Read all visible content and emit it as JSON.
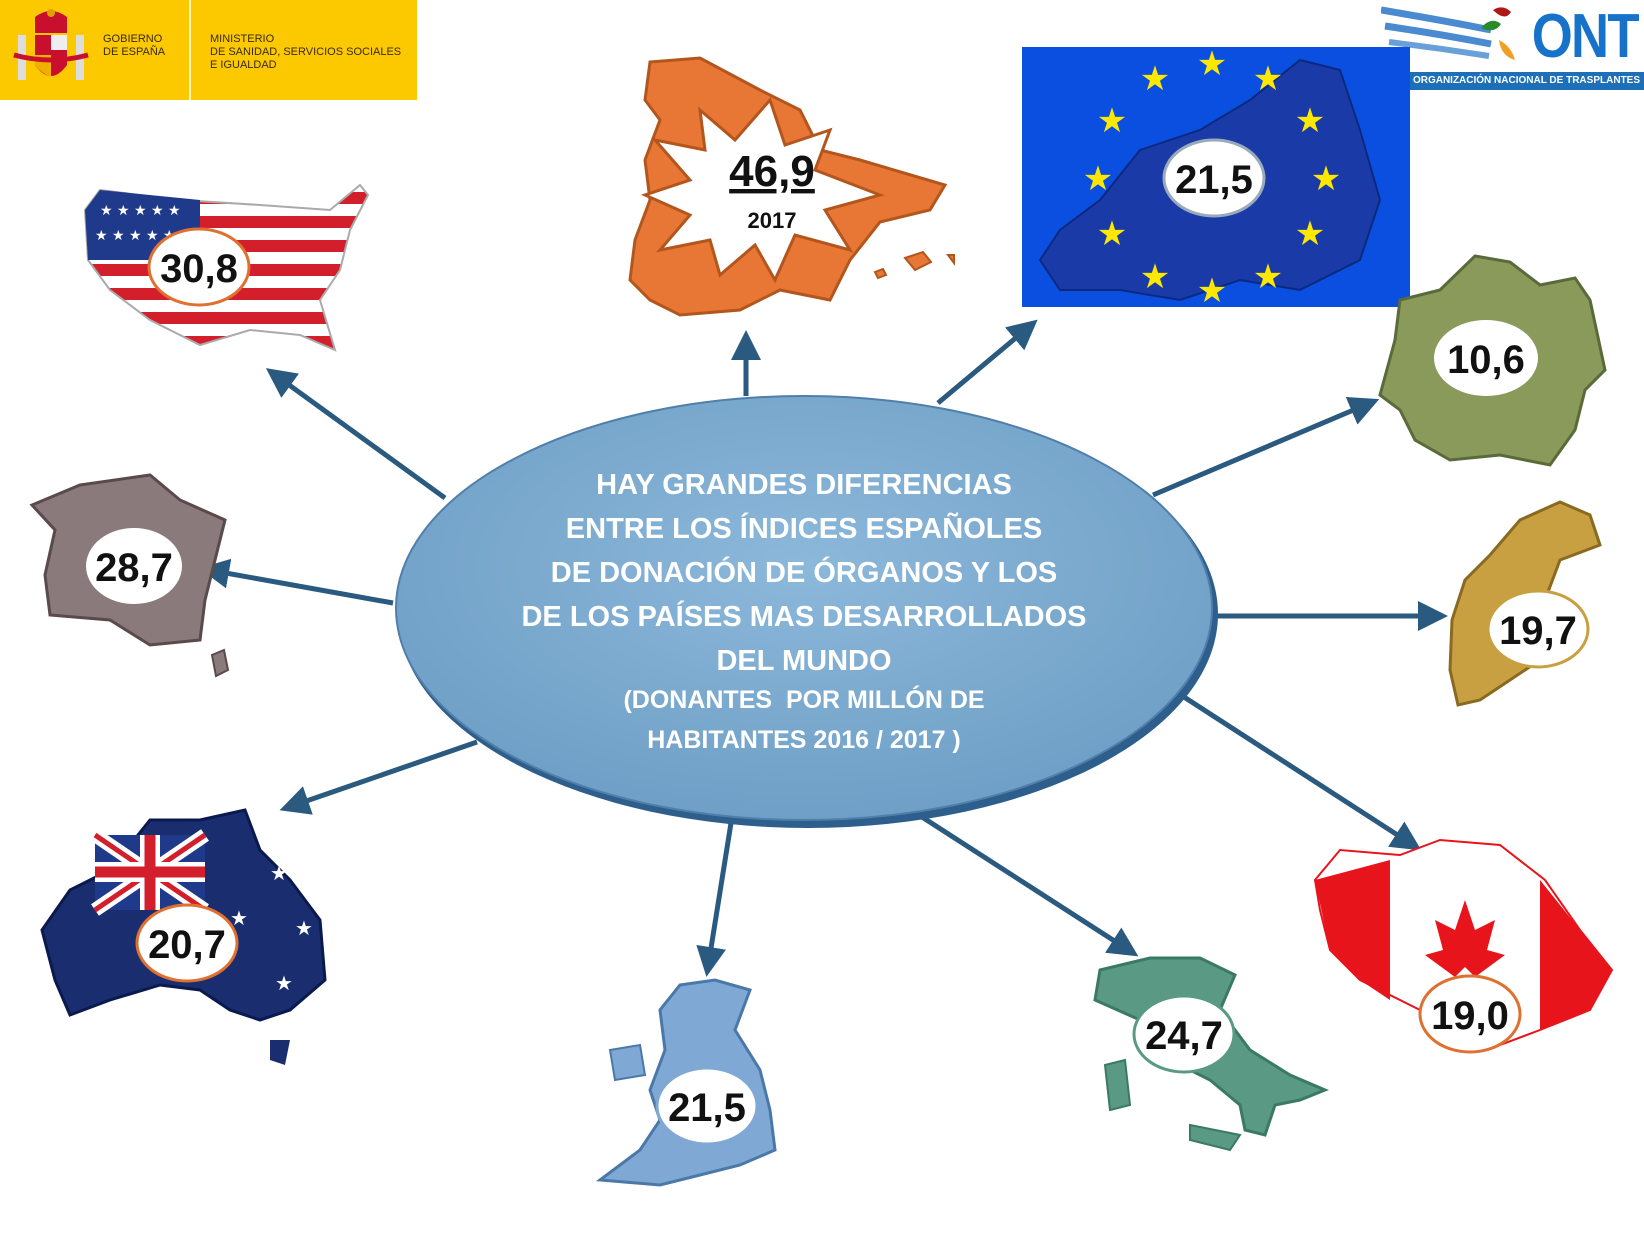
{
  "logos": {
    "gobierno": [
      "GOBIERNO",
      "DE ESPAÑA"
    ],
    "ministerio": [
      "MINISTERIO",
      "DE SANIDAD, SERVICIOS SOCIALES",
      "E IGUALDAD"
    ],
    "ont": "ONT",
    "ont_subtitle": "ORGANIZACIÓN NACIONAL DE TRASPLANTES"
  },
  "center": {
    "title_lines": [
      "HAY GRANDES DIFERENCIAS",
      "ENTRE LOS ÍNDICES ESPAÑOLES",
      "DE DONACIÓN DE ÓRGANOS Y LOS",
      "DE LOS PAÍSES MAS DESARROLLADOS",
      "DEL MUNDO"
    ],
    "subtitle_lines": [
      "(DONANTES  POR MILLÓN DE",
      "HABITANTES 2016 / 2017 )"
    ]
  },
  "spain": {
    "value": "46,9",
    "year": "2017",
    "color": "#e87634"
  },
  "countries": {
    "eu": {
      "value": "21,5",
      "color": "#0a4fe0"
    },
    "usa": {
      "value": "30,8",
      "color": "#c8202c"
    },
    "france": {
      "value": "28,7",
      "color": "#8a7a7c"
    },
    "germany": {
      "value": "10,6",
      "color": "#8a9a5a"
    },
    "sweden": {
      "value": "19,7",
      "color": "#c9a041"
    },
    "canada": {
      "value": "19,0",
      "color": "#e8141c"
    },
    "italy": {
      "value": "24,7",
      "color": "#5a9a84"
    },
    "uk": {
      "value": "21,5",
      "color": "#7fa8d4"
    },
    "australia": {
      "value": "20,7",
      "color": "#1a2d6e"
    }
  },
  "colors": {
    "ellipse": "#7fadd1",
    "ellipse_border": "#2e5f8c",
    "arrow": "#2a5a80",
    "badge_border": "#e07030"
  }
}
